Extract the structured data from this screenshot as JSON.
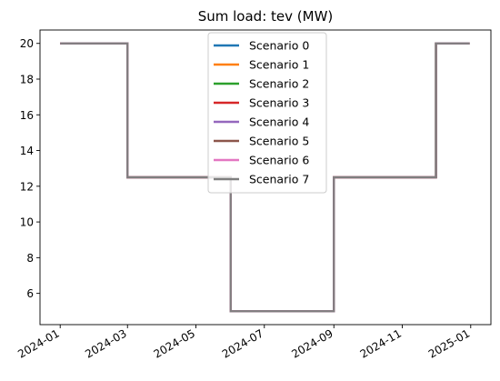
{
  "chart_data": {
    "type": "line",
    "title": "Sum load: tev (MW)",
    "xlabel": "",
    "ylabel": "",
    "x_axis_type": "date",
    "xlim": [
      "2023-12-14",
      "2025-01-19"
    ],
    "ylim": [
      4.25,
      20.75
    ],
    "x_ticks": [
      "2024-01",
      "2024-03",
      "2024-05",
      "2024-07",
      "2024-09",
      "2024-11",
      "2025-01"
    ],
    "y_ticks": [
      6,
      8,
      10,
      12,
      14,
      16,
      18,
      20
    ],
    "grid": false,
    "legend_position": "upper center",
    "x": [
      "2024-01-01",
      "2024-03-01",
      "2024-03-01",
      "2024-06-01",
      "2024-06-01",
      "2024-09-01",
      "2024-09-01",
      "2024-12-01",
      "2024-12-01",
      "2024-12-31"
    ],
    "series": [
      {
        "name": "Scenario 0",
        "color": "#1f77b4",
        "values": [
          20,
          20,
          12.5,
          12.5,
          5,
          5,
          12.5,
          12.5,
          20,
          20
        ]
      },
      {
        "name": "Scenario 1",
        "color": "#ff7f0e",
        "values": [
          20,
          20,
          12.5,
          12.5,
          5,
          5,
          12.5,
          12.5,
          20,
          20
        ]
      },
      {
        "name": "Scenario 2",
        "color": "#2ca02c",
        "values": [
          20,
          20,
          12.5,
          12.5,
          5,
          5,
          12.5,
          12.5,
          20,
          20
        ]
      },
      {
        "name": "Scenario 3",
        "color": "#d62728",
        "values": [
          20,
          20,
          12.5,
          12.5,
          5,
          5,
          12.5,
          12.5,
          20,
          20
        ]
      },
      {
        "name": "Scenario 4",
        "color": "#9467bd",
        "values": [
          20,
          20,
          12.5,
          12.5,
          5,
          5,
          12.5,
          12.5,
          20,
          20
        ]
      },
      {
        "name": "Scenario 5",
        "color": "#8c564b",
        "values": [
          20,
          20,
          12.5,
          12.5,
          5,
          5,
          12.5,
          12.5,
          20,
          20
        ]
      },
      {
        "name": "Scenario 6",
        "color": "#e377c2",
        "values": [
          20,
          20,
          12.5,
          12.5,
          5,
          5,
          12.5,
          12.5,
          20,
          20
        ]
      },
      {
        "name": "Scenario 7",
        "color": "#7f7f7f",
        "values": [
          20,
          20,
          12.5,
          12.5,
          5,
          5,
          12.5,
          12.5,
          20,
          20
        ]
      }
    ]
  }
}
